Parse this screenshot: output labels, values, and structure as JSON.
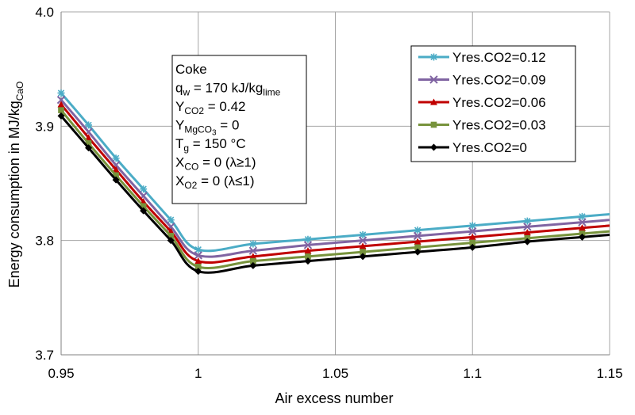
{
  "chart_data": {
    "type": "line",
    "xlabel": "Air excess number",
    "ylabel": {
      "main": "Energy consumption in MJ/kg",
      "sub": "CaO"
    },
    "xlim": [
      0.95,
      1.15
    ],
    "ylim": [
      3.7,
      4.0
    ],
    "x_ticks": [
      0.95,
      1.0,
      1.05,
      1.1,
      1.15
    ],
    "x_tick_labels": [
      "0.95",
      "1",
      "1.05",
      "1.1",
      "1.15"
    ],
    "y_ticks": [
      3.7,
      3.8,
      3.9,
      4.0
    ],
    "y_tick_labels": [
      "3.7",
      "3.8",
      "3.9",
      "4.0"
    ],
    "grid": true,
    "legend_position": "top-right",
    "annotation": [
      {
        "parts": [
          {
            "t": "Coke"
          }
        ]
      },
      {
        "parts": [
          {
            "t": "q"
          },
          {
            "t": "w",
            "sub": true
          },
          {
            "t": " = 170 kJ/kg"
          },
          {
            "t": "lime",
            "sub": true
          }
        ]
      },
      {
        "parts": [
          {
            "t": "Y"
          },
          {
            "t": "CO2",
            "sub": true
          },
          {
            "t": " = 0.42"
          }
        ]
      },
      {
        "parts": [
          {
            "t": "Y"
          },
          {
            "t": "MgCO",
            "sub": true
          },
          {
            "t": "3",
            "sub2": true
          },
          {
            "t": " = 0"
          }
        ]
      },
      {
        "parts": [
          {
            "t": "T"
          },
          {
            "t": "g",
            "sub": true
          },
          {
            "t": " = 150 °C"
          }
        ]
      },
      {
        "parts": [
          {
            "t": "X"
          },
          {
            "t": "CO",
            "sub": true
          },
          {
            "t": " = 0 (λ≥1)"
          }
        ]
      },
      {
        "parts": [
          {
            "t": "X"
          },
          {
            "t": "O2",
            "sub": true
          },
          {
            "t": " = 0 (λ≤1)"
          }
        ]
      }
    ],
    "series": [
      {
        "name": "Yres.CO2=0.12",
        "color": "#4BACC6",
        "marker": "star",
        "x": [
          0.95,
          0.96,
          0.97,
          0.98,
          0.99,
          1.0,
          1.02,
          1.04,
          1.06,
          1.08,
          1.1,
          1.12,
          1.14,
          1.15
        ],
        "y": [
          3.929,
          3.901,
          3.872,
          3.845,
          3.818,
          3.792,
          3.797,
          3.801,
          3.805,
          3.809,
          3.813,
          3.817,
          3.821,
          3.823
        ]
      },
      {
        "name": "Yres.CO2=0.09",
        "color": "#8064A2",
        "marker": "x",
        "x": [
          0.95,
          0.96,
          0.97,
          0.98,
          0.99,
          1.0,
          1.02,
          1.04,
          1.06,
          1.08,
          1.1,
          1.12,
          1.14,
          1.15
        ],
        "y": [
          3.923,
          3.895,
          3.866,
          3.839,
          3.812,
          3.787,
          3.791,
          3.796,
          3.8,
          3.804,
          3.808,
          3.812,
          3.816,
          3.818
        ]
      },
      {
        "name": "Yres.CO2=0.06",
        "color": "#C00000",
        "marker": "triangle",
        "x": [
          0.95,
          0.96,
          0.97,
          0.98,
          0.99,
          1.0,
          1.02,
          1.04,
          1.06,
          1.08,
          1.1,
          1.12,
          1.14,
          1.15
        ],
        "y": [
          3.919,
          3.89,
          3.862,
          3.834,
          3.808,
          3.782,
          3.786,
          3.791,
          3.795,
          3.799,
          3.803,
          3.807,
          3.811,
          3.813
        ]
      },
      {
        "name": "Yres.CO2=0.03",
        "color": "#77933C",
        "marker": "square",
        "x": [
          0.95,
          0.96,
          0.97,
          0.98,
          0.99,
          1.0,
          1.02,
          1.04,
          1.06,
          1.08,
          1.1,
          1.12,
          1.14,
          1.15
        ],
        "y": [
          3.914,
          3.885,
          3.857,
          3.83,
          3.804,
          3.777,
          3.782,
          3.786,
          3.79,
          3.794,
          3.798,
          3.802,
          3.806,
          3.808
        ]
      },
      {
        "name": "Yres.CO2=0",
        "color": "#000000",
        "marker": "diamond",
        "x": [
          0.95,
          0.96,
          0.97,
          0.98,
          0.99,
          1.0,
          1.02,
          1.04,
          1.06,
          1.08,
          1.1,
          1.12,
          1.14,
          1.15
        ],
        "y": [
          3.909,
          3.881,
          3.853,
          3.826,
          3.8,
          3.773,
          3.778,
          3.782,
          3.786,
          3.79,
          3.794,
          3.799,
          3.803,
          3.805
        ]
      }
    ]
  }
}
